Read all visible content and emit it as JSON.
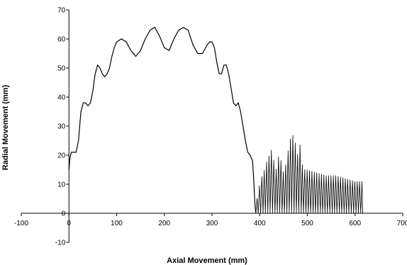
{
  "chart_data": {
    "type": "line",
    "title": "",
    "xlabel": "Axial Movement (mm)",
    "ylabel": "Radial Movement (mm)",
    "xlim": [
      -100,
      700
    ],
    "ylim": [
      -10,
      70
    ],
    "x_ticks": [
      -100,
      0,
      100,
      200,
      300,
      400,
      500,
      600,
      700
    ],
    "y_ticks": [
      -10,
      0,
      10,
      20,
      30,
      40,
      50,
      60,
      70
    ],
    "grid": false,
    "legend": "none",
    "line_color": "#000000",
    "envelope": {
      "x": [
        0,
        2,
        5,
        10,
        15,
        20,
        25,
        30,
        35,
        40,
        45,
        50,
        55,
        60,
        65,
        70,
        75,
        80,
        85,
        90,
        95,
        100,
        110,
        120,
        130,
        140,
        150,
        160,
        170,
        180,
        190,
        200,
        210,
        220,
        230,
        240,
        250,
        260,
        270,
        280,
        290,
        295,
        300,
        305,
        310,
        315,
        320,
        325,
        330,
        335,
        340,
        345,
        350,
        355,
        360,
        365,
        370,
        375,
        380,
        385,
        388,
        390,
        392
      ],
      "y": [
        15,
        19,
        21,
        21,
        21,
        25,
        35,
        38,
        38,
        37,
        38,
        42,
        48,
        51,
        50,
        48,
        47,
        48,
        50,
        54,
        57,
        59,
        60,
        59,
        56,
        54,
        56,
        60,
        63,
        64,
        61,
        57,
        56,
        60,
        63,
        64,
        63,
        58,
        55,
        55,
        58,
        59,
        59,
        57,
        52,
        48,
        48,
        51,
        51,
        48,
        43,
        38,
        37,
        38,
        35,
        30,
        25,
        21,
        20,
        18,
        10,
        3,
        0
      ]
    },
    "oscillation": {
      "x_start": 392,
      "x_end": 616,
      "peaks": [
        [
          392,
          1
        ],
        [
          395,
          6
        ],
        [
          400,
          10
        ],
        [
          405,
          13
        ],
        [
          410,
          15
        ],
        [
          415,
          18
        ],
        [
          420,
          20
        ],
        [
          425,
          22
        ],
        [
          430,
          18
        ],
        [
          435,
          15
        ],
        [
          440,
          20
        ],
        [
          445,
          18
        ],
        [
          450,
          14
        ],
        [
          455,
          17
        ],
        [
          460,
          22
        ],
        [
          465,
          26
        ],
        [
          470,
          27
        ],
        [
          475,
          24
        ],
        [
          480,
          20
        ],
        [
          485,
          24
        ],
        [
          490,
          16
        ],
        [
          495,
          15
        ],
        [
          500,
          15
        ],
        [
          520,
          14
        ],
        [
          540,
          13
        ],
        [
          560,
          13
        ],
        [
          580,
          12
        ],
        [
          600,
          11
        ],
        [
          610,
          11
        ],
        [
          616,
          11
        ]
      ]
    }
  }
}
